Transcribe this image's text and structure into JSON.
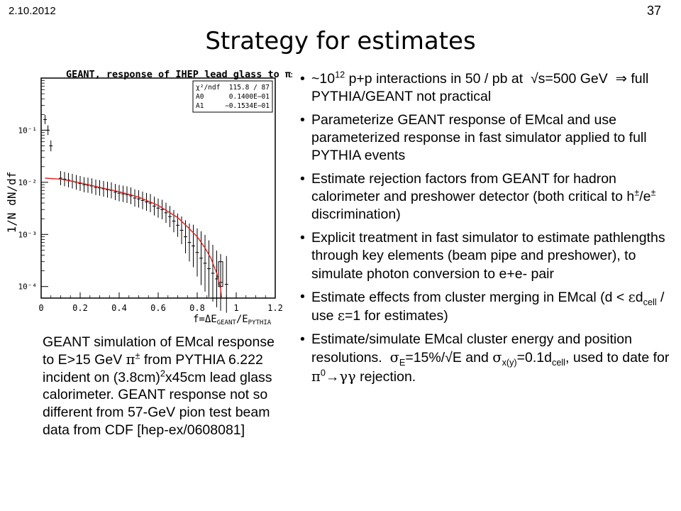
{
  "header": {
    "date": "2.10.2012",
    "page_number": "37",
    "title": "Strategy for estimates"
  },
  "plot": {
    "title": "GEANT, response of IHEP lead glass to π±",
    "ylabel": "1/N dN/df",
    "xlabel": "f=ΔE_GEANT/E_PYTHIA",
    "stats": [
      {
        "name": "χ²/ndf",
        "value": "115.8  /  87"
      },
      {
        "name": "A0",
        "value": "0.1400E−01"
      },
      {
        "name": "A1",
        "value": "−0.1534E−01"
      }
    ],
    "x_ticks": [
      "0",
      "0.2",
      "0.4",
      "0.6",
      "0.8",
      "1",
      "1.2"
    ],
    "y_ticks": [
      "10⁻¹",
      "10⁻²",
      "10⁻³",
      "10⁻⁴"
    ]
  },
  "chart_data": {
    "type": "scatter",
    "title": "GEANT, response of IHEP lead glass to π±",
    "xlabel": "f=ΔE_GEANT/E_PYTHIA",
    "ylabel": "1/N dN/df",
    "xlim": [
      0,
      1.2
    ],
    "ylim": [
      6e-05,
      1
    ],
    "y_scale": "log",
    "grid": false,
    "series": [
      {
        "kind": "points",
        "x": [
          0.02,
          0.035,
          0.05,
          0.1,
          0.12,
          0.14,
          0.16,
          0.18,
          0.2,
          0.22,
          0.24,
          0.26,
          0.28,
          0.3,
          0.32,
          0.34,
          0.36,
          0.38,
          0.4,
          0.42,
          0.44,
          0.46,
          0.48,
          0.5,
          0.52,
          0.54,
          0.56,
          0.58,
          0.6,
          0.62,
          0.64,
          0.66,
          0.68,
          0.7,
          0.72,
          0.74,
          0.76,
          0.78,
          0.8,
          0.82,
          0.84,
          0.86,
          0.88,
          0.9,
          0.92,
          0.95
        ],
        "y": [
          0.16,
          0.1,
          0.05,
          0.012,
          0.0115,
          0.011,
          0.0105,
          0.01,
          0.0095,
          0.009,
          0.0088,
          0.0085,
          0.008,
          0.0078,
          0.0075,
          0.0072,
          0.007,
          0.0065,
          0.0062,
          0.006,
          0.0058,
          0.0055,
          0.005,
          0.0048,
          0.0045,
          0.0042,
          0.004,
          0.0035,
          0.0032,
          0.003,
          0.0026,
          0.0022,
          0.0018,
          0.0015,
          0.0012,
          0.0009,
          0.0007,
          0.0006,
          0.00045,
          0.00035,
          0.00028,
          0.00022,
          0.00018,
          0.00014,
          0.00012,
          0.00011
        ]
      },
      {
        "kind": "fit_curve",
        "x": [
          0.02,
          0.1,
          0.2,
          0.3,
          0.4,
          0.5,
          0.6,
          0.7,
          0.75,
          0.8,
          0.84,
          0.87,
          0.9,
          0.92
        ],
        "y": [
          0.012,
          0.0115,
          0.0098,
          0.008,
          0.0066,
          0.0052,
          0.0036,
          0.0021,
          0.0014,
          0.0009,
          0.00055,
          0.00035,
          0.00018,
          9e-05
        ]
      }
    ]
  },
  "caption_html": "GEANT simulation of EMcal response to E&gt;15 GeV <span class=\"greek\">π</span><sup>±</sup> from PYTHIA 6.222 incident on (3.8cm)<sup>2</sup>x45cm lead glass calorimeter. GEANT response not so different from 57-GeV pion test beam data from CDF [hep-ex/0608081]",
  "bullets": [
    {
      "html": "~10<sup>12</sup> p+p interactions in 50 / pb at &nbsp;√s=500 GeV &nbsp;⇒ full PYTHIA/GEANT not practical"
    },
    {
      "html": "Parameterize GEANT response of EMcal and use parameterized response in fast simulator applied to full PYTHIA events"
    },
    {
      "html": "Estimate rejection factors from GEANT for hadron calorimeter and preshower detector (both critical to h<sup>±</sup>/e<sup>±</sup> discrimination)"
    },
    {
      "html": "Explicit treatment in fast simulator to estimate pathlengths through key elements (beam pipe and preshower), to simulate photon conversion to e+e- pair"
    },
    {
      "html": "Estimate effects from cluster merging in EMcal (d &lt; <span class=\"greek\">ε</span>d<sub>cell</sub> / use <span class=\"greek\">ε</span>=1 for estimates)"
    },
    {
      "html": "Estimate/simulate EMcal cluster energy and position resolutions. &nbsp;<span class=\"greek\">σ</span><sub>E</sub>=15%/√E and <span class=\"greek\">σ</span><sub>x(y)</sub>=0.1d<sub>cell</sub>, used to date for <span class=\"greek\">π</span><sup>0</sup>→<span class=\"greek\">γγ</span> rejection."
    }
  ]
}
